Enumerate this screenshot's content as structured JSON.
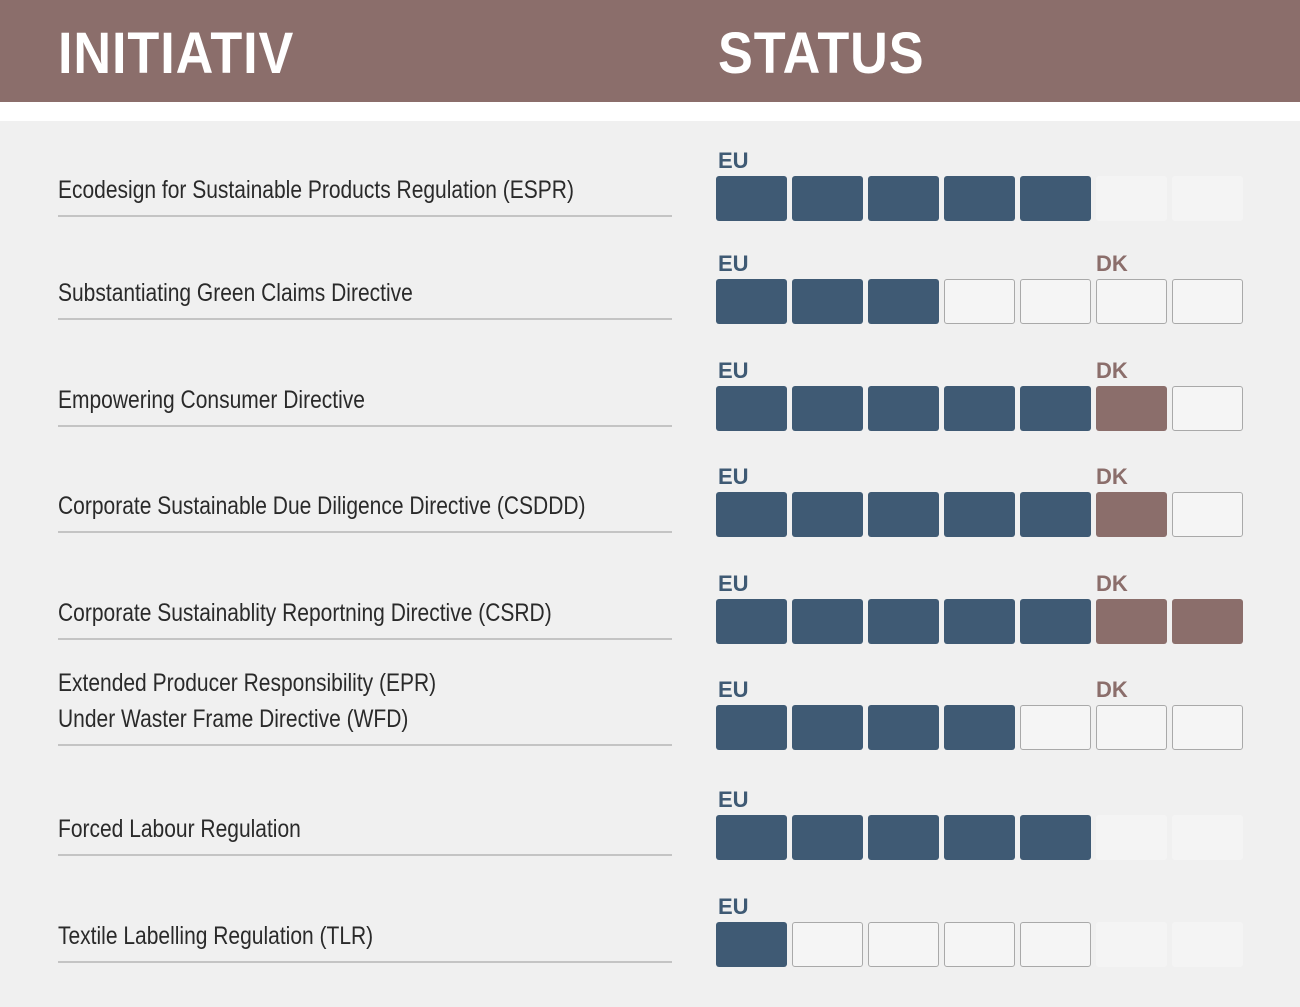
{
  "header": {
    "initiativ": "INITIATIV",
    "status": "STATUS"
  },
  "rows": [
    {
      "label": [
        "Ecodesign for Sustainable Products Regulation (ESPR)"
      ],
      "eu": "EU",
      "cells": [
        "#3f5a74",
        "#3f5a74",
        "#3f5a74",
        "#3f5a74",
        "#3f5a74",
        null,
        null
      ]
    },
    {
      "label": [
        "Substantiating Green Claims Directive"
      ],
      "eu": "EU",
      "dk": "DK",
      "cells": [
        "#3f5a74",
        "#3f5a74",
        "#3f5a74",
        "white",
        "white",
        "white",
        "white"
      ]
    },
    {
      "label": [
        "Empowering Consumer Directive"
      ],
      "eu": "EU",
      "dk": "DK",
      "cells": [
        "#3f5a74",
        "#3f5a74",
        "#3f5a74",
        "#3f5a74",
        "#3f5a74",
        "#8b6e6b",
        "white"
      ]
    },
    {
      "label": [
        "Corporate Sustainable Due Diligence Directive (CSDDD)"
      ],
      "eu": "EU",
      "dk": "DK",
      "cells": [
        "#3f5a74",
        "#3f5a74",
        "#3f5a74",
        "#3f5a74",
        "#3f5a74",
        "#8b6e6b",
        "white"
      ]
    },
    {
      "label": [
        "Corporate Sustainablity Reportning Directive (CSRD)"
      ],
      "eu": "EU",
      "dk": "DK",
      "cells": [
        "#3f5a74",
        "#3f5a74",
        "#3f5a74",
        "#3f5a74",
        "#3f5a74",
        "#8b6e6b",
        "#8b6e6b"
      ]
    },
    {
      "label": [
        "Extended Producer Responsibility (EPR)",
        "Under Waster Frame Directive (WFD)"
      ],
      "eu": "EU",
      "dk": "DK",
      "cells": [
        "#3f5a74",
        "#3f5a74",
        "#3f5a74",
        "#3f5a74",
        "white",
        "white",
        "white"
      ]
    },
    {
      "label": [
        "Forced Labour Regulation"
      ],
      "eu": "EU",
      "cells": [
        "#3f5a74",
        "#3f5a74",
        "#3f5a74",
        "#3f5a74",
        "#3f5a74",
        null,
        null
      ]
    },
    {
      "label": [
        "Textile Labelling Regulation (TLR)"
      ],
      "eu": "EU",
      "cells": [
        "#3f5a74",
        "white",
        "white",
        "white",
        "white",
        null,
        null
      ]
    }
  ]
}
